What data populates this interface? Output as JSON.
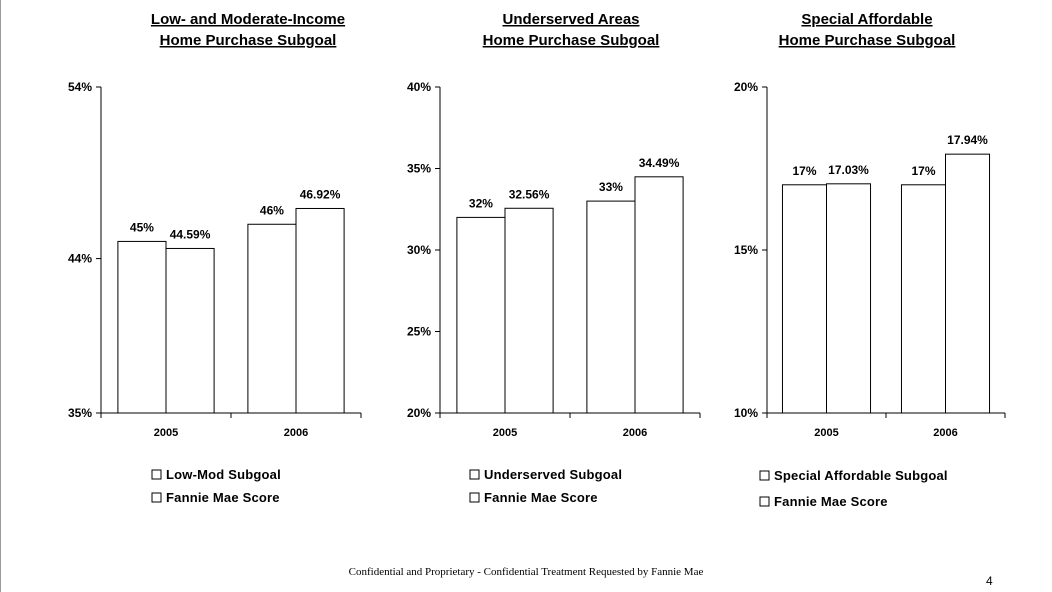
{
  "footer": "Confidential and Proprietary - Confidential Treatment Requested by Fannie Mae",
  "page_number": "4",
  "chart_data": [
    {
      "type": "bar",
      "title": [
        "Low- and Moderate-Income",
        "Home Purchase Subgoal"
      ],
      "categories": [
        "2005",
        "2006"
      ],
      "ylim": [
        35,
        54
      ],
      "yticks": [
        35,
        44,
        54
      ],
      "ytick_labels": [
        "35%",
        "44%",
        "54%"
      ],
      "series": [
        {
          "name": "Low-Mod Subgoal",
          "values": [
            45,
            46
          ],
          "labels": [
            "45%",
            "46%"
          ]
        },
        {
          "name": "Fannie Mae Score",
          "values": [
            44.59,
            46.92
          ],
          "labels": [
            "44.59%",
            "46.92%"
          ]
        }
      ],
      "legend": "bottom",
      "grid": false
    },
    {
      "type": "bar",
      "title": [
        "Underserved Areas",
        "Home Purchase Subgoal"
      ],
      "categories": [
        "2005",
        "2006"
      ],
      "ylim": [
        20,
        40
      ],
      "yticks": [
        20,
        25,
        30,
        35,
        40
      ],
      "ytick_labels": [
        "20%",
        "25%",
        "30%",
        "35%",
        "40%"
      ],
      "series": [
        {
          "name": "Underserved Subgoal",
          "values": [
            32,
            33
          ],
          "labels": [
            "32%",
            "33%"
          ]
        },
        {
          "name": "Fannie Mae Score",
          "values": [
            32.56,
            34.49
          ],
          "labels": [
            "32.56%",
            "34.49%"
          ]
        }
      ],
      "legend": "bottom",
      "grid": false
    },
    {
      "type": "bar",
      "title": [
        "Special Affordable",
        "Home Purchase Subgoal"
      ],
      "categories": [
        "2005",
        "2006"
      ],
      "ylim": [
        10,
        20
      ],
      "yticks": [
        10,
        15,
        20
      ],
      "ytick_labels": [
        "10%",
        "15%",
        "20%"
      ],
      "series": [
        {
          "name": "Special Affordable Subgoal",
          "values": [
            17,
            17
          ],
          "labels": [
            "17%",
            "17%"
          ]
        },
        {
          "name": "Fannie Mae Score",
          "values": [
            17.03,
            17.94
          ],
          "labels": [
            "17.03%",
            "17.94%"
          ]
        }
      ],
      "legend": "bottom",
      "grid": false
    }
  ]
}
